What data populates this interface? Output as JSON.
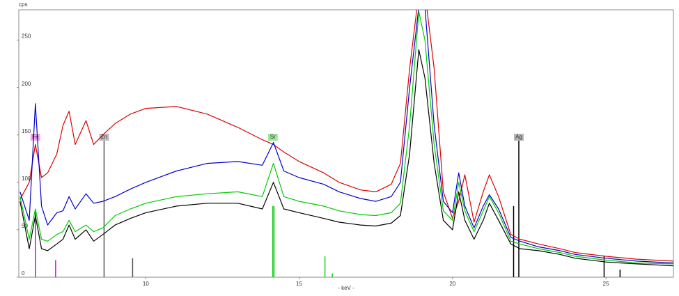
{
  "chart_data": {
    "type": "line",
    "xlabel": "- keV -",
    "ylabel": "cps",
    "xlim": [
      5.86,
      27.2
    ],
    "ylim": [
      0,
      282
    ],
    "xticks": [
      10,
      15,
      20,
      25
    ],
    "yticks": [
      0,
      50,
      100,
      150,
      200,
      250
    ],
    "grid": false,
    "x": [
      5.9,
      6.2,
      6.4,
      6.6,
      6.8,
      7.1,
      7.3,
      7.5,
      7.7,
      8.05,
      8.3,
      8.6,
      9,
      9.5,
      10,
      11,
      12,
      13,
      13.8,
      14.16,
      14.5,
      15,
      15.8,
      16.3,
      17,
      17.5,
      18,
      18.3,
      18.6,
      18.9,
      19.1,
      19.4,
      19.7,
      20.0,
      20.2,
      20.4,
      20.7,
      21.0,
      21.2,
      21.5,
      21.9,
      22.2,
      22.8,
      23.5,
      24,
      25,
      26,
      27.2
    ],
    "series": [
      {
        "color": "#dd0000",
        "values": [
          82,
          100,
          140,
          105,
          110,
          130,
          160,
          175,
          140,
          165,
          140,
          150,
          162,
          172,
          178,
          180,
          172,
          158,
          145,
          140,
          132,
          122,
          110,
          100,
          92,
          90,
          98,
          120,
          220,
          300,
          300,
          220,
          90,
          62,
          80,
          108,
          58,
          90,
          108,
          85,
          45,
          40,
          35,
          30,
          26,
          22,
          19,
          17
        ]
      },
      {
        "color": "#0000cc",
        "values": [
          90,
          60,
          183,
          75,
          55,
          68,
          70,
          85,
          72,
          88,
          78,
          80,
          85,
          93,
          100,
          112,
          120,
          122,
          118,
          142,
          112,
          105,
          98,
          90,
          83,
          80,
          85,
          100,
          200,
          285,
          285,
          160,
          80,
          68,
          110,
          75,
          52,
          75,
          87,
          72,
          42,
          38,
          32,
          28,
          24,
          20,
          17,
          15
        ]
      },
      {
        "color": "#00cc00",
        "values": [
          85,
          40,
          72,
          40,
          38,
          45,
          48,
          60,
          48,
          55,
          48,
          52,
          65,
          72,
          78,
          85,
          88,
          90,
          85,
          120,
          85,
          80,
          75,
          70,
          66,
          65,
          68,
          78,
          160,
          280,
          250,
          140,
          70,
          60,
          100,
          70,
          48,
          70,
          85,
          68,
          38,
          35,
          30,
          26,
          22,
          18,
          15,
          14
        ]
      },
      {
        "color": "#000000",
        "values": [
          80,
          30,
          65,
          30,
          28,
          35,
          40,
          55,
          40,
          50,
          38,
          45,
          55,
          62,
          68,
          75,
          78,
          78,
          72,
          100,
          72,
          68,
          62,
          58,
          55,
          54,
          57,
          65,
          130,
          240,
          210,
          120,
          60,
          50,
          90,
          60,
          40,
          60,
          78,
          60,
          35,
          30,
          28,
          24,
          20,
          16,
          14,
          12
        ]
      }
    ],
    "elements": [
      {
        "name": "Fe",
        "color": "#e000e0",
        "label_color": "#f4a6f4",
        "lines": [
          {
            "energy": 6.4,
            "height": 70
          },
          {
            "energy": 7.06,
            "height": 18
          }
        ]
      },
      {
        "name": "Zn",
        "color": "#555555",
        "label_color": "#bdbdbd",
        "lines": [
          {
            "energy": 8.64,
            "height": 148
          },
          {
            "energy": 9.57,
            "height": 20
          }
        ]
      },
      {
        "name": "Sr",
        "color": "#22cc22",
        "label_color": "#9be89b",
        "lines": [
          {
            "energy": 14.14,
            "height": 75
          },
          {
            "energy": 14.18,
            "height": 75
          },
          {
            "energy": 15.84,
            "height": 22
          },
          {
            "energy": 16.08,
            "height": 4
          }
        ]
      },
      {
        "name": "Ag",
        "color": "#000000",
        "label_color": "#b5b5b5",
        "lines": [
          {
            "energy": 21.99,
            "height": 75
          },
          {
            "energy": 22.16,
            "height": 148
          },
          {
            "energy": 24.94,
            "height": 22
          },
          {
            "energy": 25.46,
            "height": 8
          }
        ]
      }
    ]
  }
}
